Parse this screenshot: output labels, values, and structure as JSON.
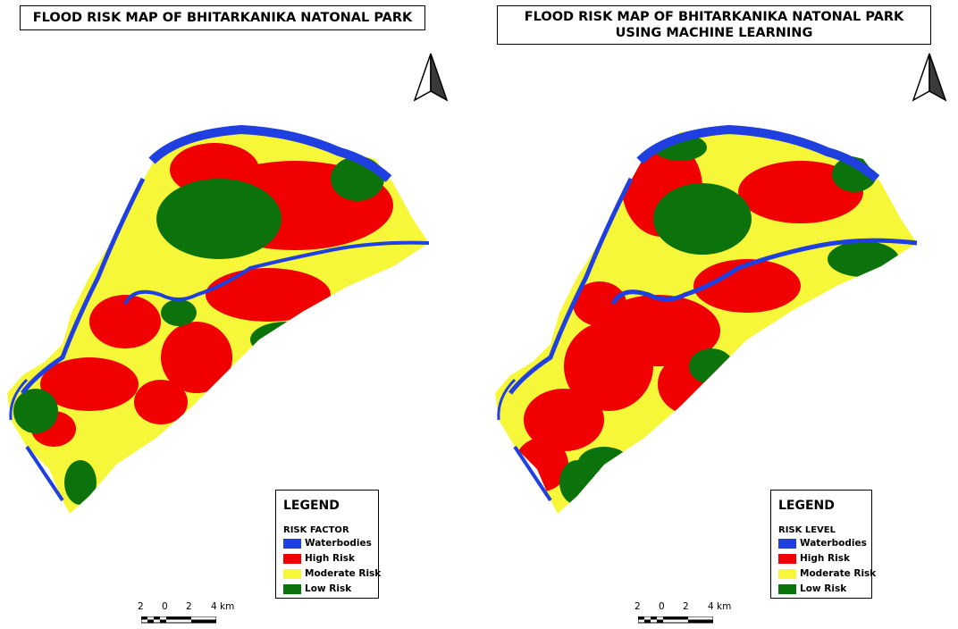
{
  "maps": [
    {
      "title": "FLOOD RISK MAP OF BHITARKANIKA NATONAL PARK",
      "legend": {
        "title": "LEGEND",
        "subtitle": "RISK FACTOR",
        "items": [
          {
            "label": "Waterbodies",
            "color": "#1f3fe0"
          },
          {
            "label": "High Risk",
            "color": "#f00000"
          },
          {
            "label": "Moderate Risk",
            "color": "#f7f73a"
          },
          {
            "label": "Low Risk",
            "color": "#0c720c"
          }
        ]
      },
      "scale": {
        "labels": [
          "2",
          "0",
          "2",
          "4 km"
        ]
      },
      "north_icon": "north-arrow-icon"
    },
    {
      "title": "FLOOD RISK MAP OF BHITARKANIKA NATONAL PARK USING MACHINE LEARNING",
      "legend": {
        "title": "LEGEND",
        "subtitle": "RISK LEVEL",
        "items": [
          {
            "label": "Waterbodies",
            "color": "#1f3fe0"
          },
          {
            "label": "High Risk",
            "color": "#f00000"
          },
          {
            "label": "Moderate Risk",
            "color": "#f7f73a"
          },
          {
            "label": "Low Risk",
            "color": "#0c720c"
          }
        ]
      },
      "scale": {
        "labels": [
          "2",
          "0",
          "2",
          "4 km"
        ]
      },
      "north_icon": "north-arrow-icon"
    }
  ]
}
